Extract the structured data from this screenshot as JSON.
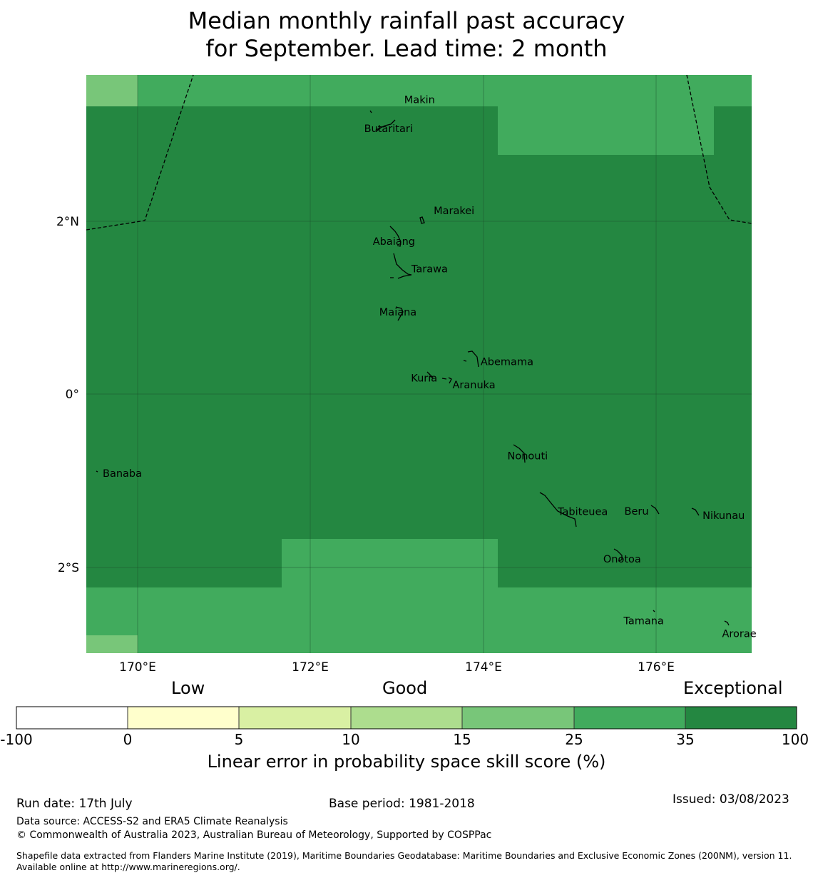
{
  "title_line1": "Median monthly rainfall past accuracy",
  "title_line2": "for September. Lead time: 2 month",
  "colors": {
    "exceptional_dark": "#248741",
    "good_35": "#41ab5d",
    "good_25": "#78c679",
    "good_15": "#addd8e",
    "low_10": "#d9f0a3",
    "low_5": "#ffffcc",
    "none": "#ffffff"
  },
  "axes": {
    "lon_ticks": [
      "170°E",
      "172°E",
      "174°E",
      "176°E"
    ],
    "lat_ticks": [
      "2°N",
      "0°",
      "2°S"
    ]
  },
  "places": [
    {
      "name": "Makin",
      "lon": 173.0,
      "lat": 3.35
    },
    {
      "name": "Butaritari",
      "lon": 172.85,
      "lat": 3.1
    },
    {
      "name": "Marakei",
      "lon": 173.3,
      "lat": 2.0
    },
    {
      "name": "Abaiang",
      "lon": 172.95,
      "lat": 1.8
    },
    {
      "name": "Tarawa",
      "lon": 173.1,
      "lat": 1.45
    },
    {
      "name": "Maiana",
      "lon": 173.0,
      "lat": 0.95
    },
    {
      "name": "Abemama",
      "lon": 173.9,
      "lat": 0.4
    },
    {
      "name": "Kuria",
      "lon": 173.4,
      "lat": 0.22
    },
    {
      "name": "Aranuka",
      "lon": 173.6,
      "lat": 0.15
    },
    {
      "name": "Nonouti",
      "lon": 174.4,
      "lat": -0.65
    },
    {
      "name": "Banaba",
      "lon": 169.53,
      "lat": -0.86
    },
    {
      "name": "Tabiteuea",
      "lon": 174.9,
      "lat": -1.35
    },
    {
      "name": "Beru",
      "lon": 176.0,
      "lat": -1.33
    },
    {
      "name": "Nikunau",
      "lon": 176.45,
      "lat": -1.37
    },
    {
      "name": "Onotoa",
      "lon": 175.55,
      "lat": -1.85
    },
    {
      "name": "Tamana",
      "lon": 175.95,
      "lat": -2.5
    },
    {
      "name": "Arorae",
      "lon": 176.8,
      "lat": -2.65
    }
  ],
  "colorbar": {
    "categories": [
      "Low",
      "Good",
      "Exceptional"
    ],
    "ticks": [
      "-100",
      "0",
      "5",
      "10",
      "15",
      "25",
      "35",
      "100"
    ],
    "label": "Linear error in probability space skill score (%)"
  },
  "footer": {
    "run_date": "Run date: 17th July",
    "base_period": "Base period: 1981-2018",
    "issued": "Issued: 03/08/2023",
    "data_source": "Data source: ACCESS-S2 and ERA5 Climate Reanalysis",
    "copyright": "© Commonwealth of Australia 2023, Australian Bureau of Meteorology, Supported by COSPPac",
    "shapefile": "Shapefile data extracted from Flanders Marine Institute (2019), Maritime Boundaries Geodatabase: Maritime Boundaries and Exclusive Economic Zones (200NM), version 11. Available online at http://www.marineregions.org/."
  }
}
